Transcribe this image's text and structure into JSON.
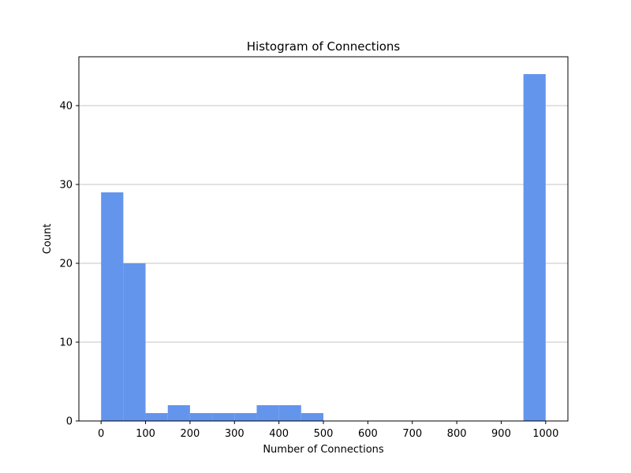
{
  "colors": {
    "bar": "#6495ED",
    "grid": "#b0b0b0",
    "axis": "#000000"
  },
  "chart_data": {
    "type": "bar",
    "title": "Histogram of Connections",
    "xlabel": "Number of Connections",
    "ylabel": "Count",
    "xlim": [
      -50,
      1050
    ],
    "ylim": [
      0,
      46.2
    ],
    "xticks": [
      0,
      100,
      200,
      300,
      400,
      500,
      600,
      700,
      800,
      900,
      1000
    ],
    "yticks": [
      0,
      10,
      20,
      30,
      40
    ],
    "grid": "y",
    "bin_edges": [
      0,
      50,
      100,
      150,
      200,
      250,
      300,
      350,
      400,
      450,
      500,
      550,
      600,
      650,
      700,
      750,
      800,
      850,
      900,
      950,
      1000
    ],
    "values": [
      29,
      20,
      1,
      2,
      1,
      1,
      1,
      2,
      2,
      1,
      0,
      0,
      0,
      0,
      0,
      0,
      0,
      0,
      0,
      44
    ]
  }
}
